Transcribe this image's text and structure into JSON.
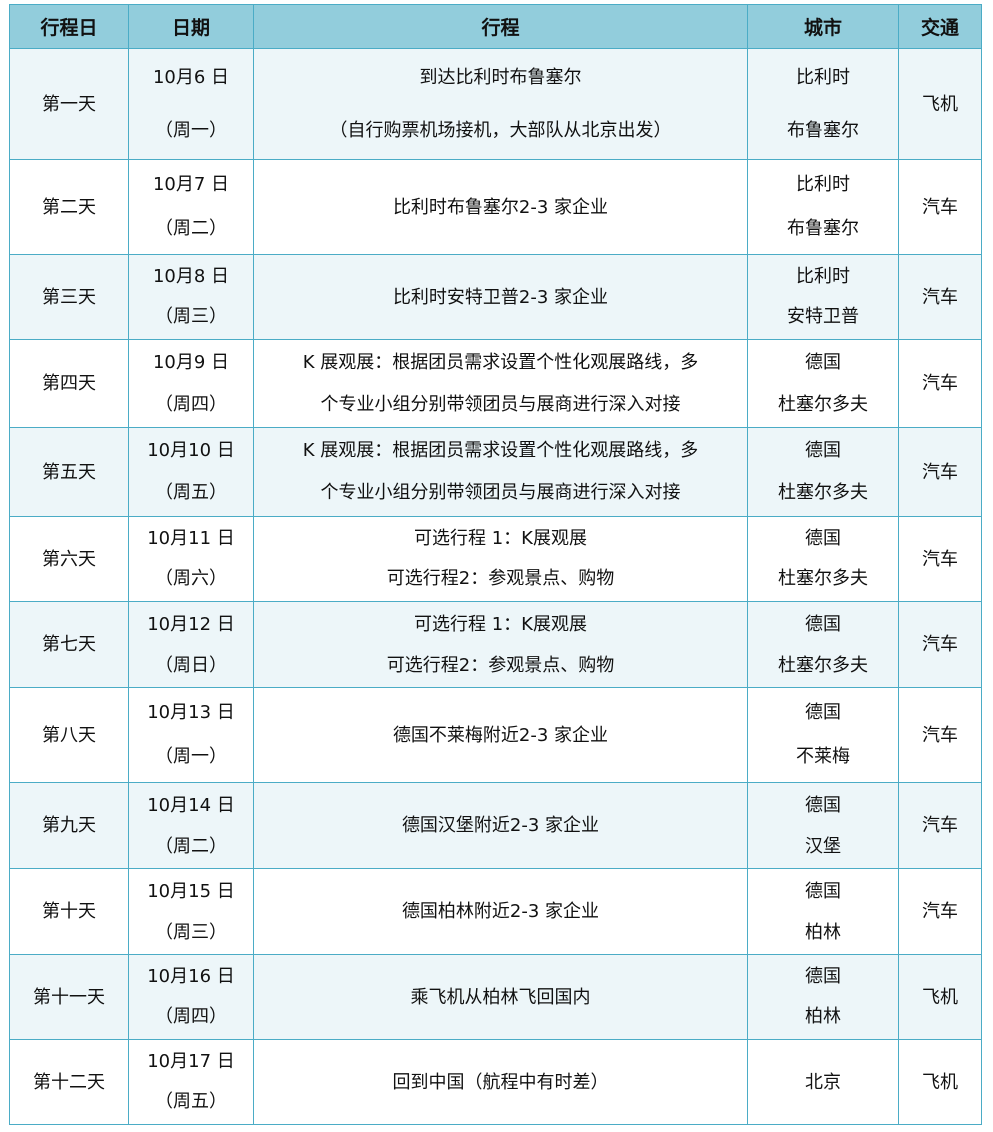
{
  "headers": [
    "行程日",
    "日期",
    "行程",
    "城市",
    "交通"
  ],
  "rows": [
    {
      "day": "第一天",
      "date": "10月6 日",
      "weekday": "（周一）",
      "plan": [
        "到达比利时布鲁塞尔",
        "（自行购票机场接机，大部队从北京出发）"
      ],
      "city": [
        "比利时",
        "布鲁塞尔"
      ],
      "transport": "飞机"
    },
    {
      "day": "第二天",
      "date": "10月7 日",
      "weekday": "（周二）",
      "plan": [
        "比利时布鲁塞尔2-3 家企业"
      ],
      "city": [
        "比利时",
        "布鲁塞尔"
      ],
      "transport": "汽车"
    },
    {
      "day": "第三天",
      "date": "10月8 日",
      "weekday": "（周三）",
      "plan": [
        "比利时安特卫普2-3 家企业"
      ],
      "city": [
        "比利时",
        "安特卫普"
      ],
      "transport": "汽车"
    },
    {
      "day": "第四天",
      "date": "10月9 日",
      "weekday": "（周四）",
      "plan": [
        "K 展观展：根据团员需求设置个性化观展路线，多",
        "个专业小组分别带领团员与展商进行深入对接"
      ],
      "city": [
        "德国",
        "杜塞尔多夫"
      ],
      "transport": "汽车"
    },
    {
      "day": "第五天",
      "date": "10月10 日",
      "weekday": "（周五）",
      "plan": [
        "K 展观展：根据团员需求设置个性化观展路线，多",
        "个专业小组分别带领团员与展商进行深入对接"
      ],
      "city": [
        "德国",
        "杜塞尔多夫"
      ],
      "transport": "汽车"
    },
    {
      "day": "第六天",
      "date": "10月11 日",
      "weekday": "（周六）",
      "plan": [
        "可选行程 1：K展观展",
        "可选行程2：参观景点、购物"
      ],
      "city": [
        "德国",
        "杜塞尔多夫"
      ],
      "transport": "汽车"
    },
    {
      "day": "第七天",
      "date": "10月12 日",
      "weekday": "（周日）",
      "plan": [
        "可选行程 1：K展观展",
        "可选行程2：参观景点、购物"
      ],
      "city": [
        "德国",
        "杜塞尔多夫"
      ],
      "transport": "汽车"
    },
    {
      "day": "第八天",
      "date": "10月13 日",
      "weekday": "（周一）",
      "plan": [
        "德国不莱梅附近2-3 家企业"
      ],
      "city": [
        "德国",
        "不莱梅"
      ],
      "transport": "汽车"
    },
    {
      "day": "第九天",
      "date": "10月14 日",
      "weekday": "（周二）",
      "plan": [
        "德国汉堡附近2-3 家企业"
      ],
      "city": [
        "德国",
        "汉堡"
      ],
      "transport": "汽车"
    },
    {
      "day": "第十天",
      "date": "10月15 日",
      "weekday": "（周三）",
      "plan": [
        "德国柏林附近2-3 家企业"
      ],
      "city": [
        "德国",
        "柏林"
      ],
      "transport": "汽车"
    },
    {
      "day": "第十一天",
      "date": "10月16 日",
      "weekday": "（周四）",
      "plan": [
        "乘飞机从柏林飞回国内"
      ],
      "city": [
        "德国",
        "柏林"
      ],
      "transport": "飞机"
    },
    {
      "day": "第十二天",
      "date": "10月17 日",
      "weekday": "（周五）",
      "plan": [
        "回到中国（航程中有时差）"
      ],
      "city": [
        "北京"
      ],
      "transport": "飞机"
    }
  ],
  "colors": {
    "header_bg": "#92CDDC",
    "border": "#4BACC6",
    "alt_row": "#EDF6F9"
  }
}
